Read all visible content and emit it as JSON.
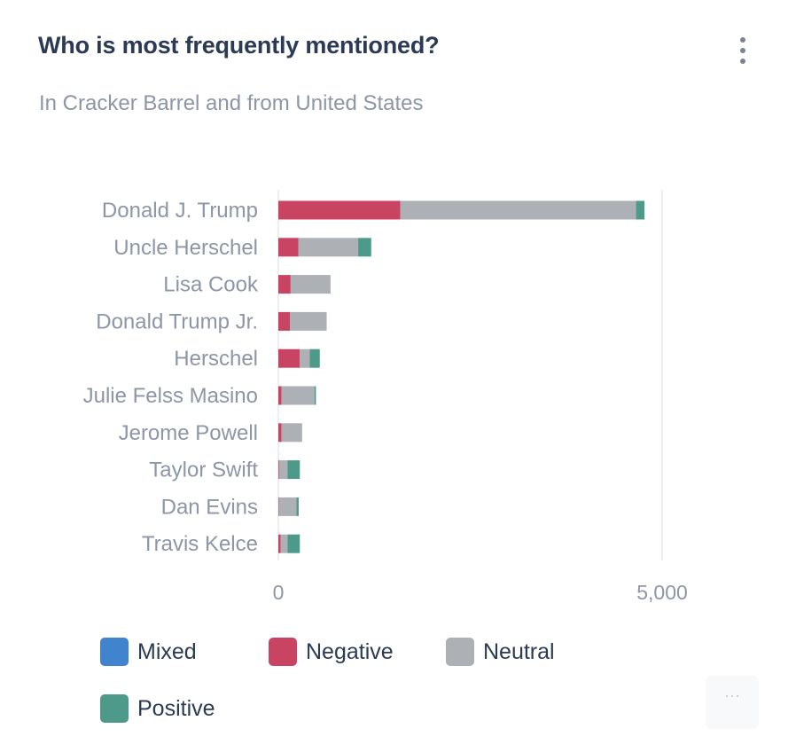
{
  "header": {
    "title": "Who is most frequently mentioned?",
    "subtitle": "In Cracker Barrel and from United States",
    "menu_icon": "vertical-dots-icon",
    "more_label": "···"
  },
  "colors": {
    "Mixed": "#3f84cc",
    "Negative": "#c84462",
    "Neutral": "#adb0b5",
    "Positive": "#4e9a8a",
    "grid": "#e6e8ec"
  },
  "chart_data": {
    "type": "bar",
    "orientation": "horizontal",
    "stacked": true,
    "categories": [
      "Donald J. Trump",
      "Uncle Herschel",
      "Lisa Cook",
      "Donald Trump Jr.",
      "Herschel",
      "Julie Felss Masino",
      "Jerome Powell",
      "Taylor Swift",
      "Dan Evins",
      "Travis Kelce"
    ],
    "series": [
      {
        "name": "Mixed",
        "values": [
          0,
          0,
          0,
          0,
          0,
          0,
          0,
          0,
          0,
          0
        ]
      },
      {
        "name": "Negative",
        "values": [
          1590,
          260,
          160,
          150,
          280,
          40,
          40,
          10,
          5,
          30
        ]
      },
      {
        "name": "Neutral",
        "values": [
          3070,
          780,
          520,
          480,
          130,
          430,
          270,
          110,
          230,
          90
        ]
      },
      {
        "name": "Positive",
        "values": [
          110,
          170,
          0,
          0,
          130,
          20,
          0,
          160,
          30,
          160
        ]
      }
    ],
    "xlim": [
      0,
      5000
    ],
    "xticks": [
      "0",
      "5,000"
    ],
    "xtick_values": [
      0,
      5000
    ],
    "grid": true,
    "legend_position": "bottom"
  }
}
